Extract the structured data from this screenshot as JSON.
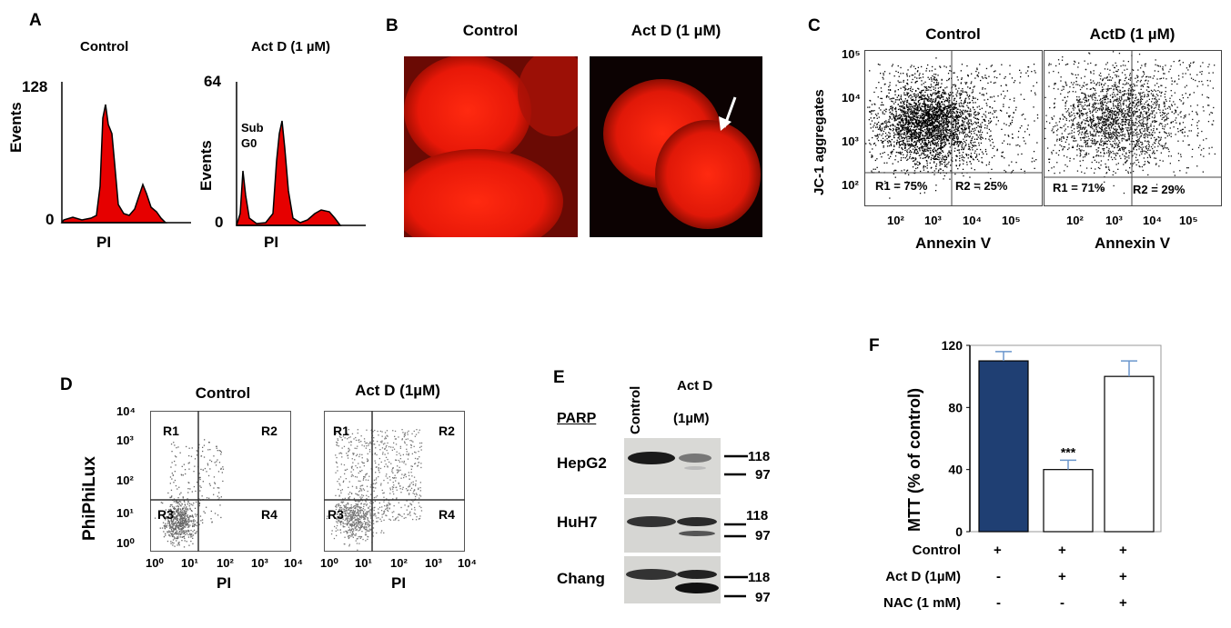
{
  "panel_a": {
    "label": "A",
    "control": {
      "title": "Control",
      "ymax": "128",
      "ymin": "0",
      "ylabel": "Events",
      "xlabel": "PI"
    },
    "actd": {
      "title": "Act D (1 µM)",
      "ymax": "64",
      "ymin": "0",
      "ylabel": "Events",
      "xlabel": "PI",
      "subg0": [
        "Sub",
        "G0"
      ]
    }
  },
  "panel_b": {
    "label": "B",
    "control_title": "Control",
    "actd_title": "Act D (1 µM)"
  },
  "panel_c": {
    "label": "C",
    "ylabel": "JC-1 aggregates",
    "xlabel": "Annexin V",
    "yticks": [
      "10⁵",
      "10⁴",
      "10³",
      "10²"
    ],
    "xticks": [
      "10²",
      "10³",
      "10⁴",
      "10⁵"
    ],
    "control": {
      "title": "Control",
      "r1": "R1 = 75%",
      "r2": "R2 = 25%"
    },
    "actd": {
      "title": "ActD (1 µM)",
      "r1": "R1 = 71%",
      "r2": "R2 = 29%"
    }
  },
  "panel_d": {
    "label": "D",
    "ylabel": "PhiPhiLux",
    "xlabel": "PI",
    "yticks": [
      "10⁴",
      "10³",
      "10²",
      "10¹",
      "10⁰"
    ],
    "xticks": [
      "10⁰",
      "10¹",
      "10²",
      "10³",
      "10⁴"
    ],
    "quadrants": [
      "R1",
      "R2",
      "R3",
      "R4"
    ],
    "control_title": "Control",
    "actd_title": "Act D (1µM)"
  },
  "panel_e": {
    "label": "E",
    "header": "PARP",
    "col_control": "Control",
    "col_actd": [
      "Act D",
      "(1µM)"
    ],
    "rows": [
      {
        "name": "HepG2",
        "m1": "118",
        "m2": "97"
      },
      {
        "name": "HuH7",
        "m1": "118",
        "m2": "97"
      },
      {
        "name": "Chang",
        "m1": "118",
        "m2": "97"
      }
    ]
  },
  "panel_f": {
    "label": "F",
    "significance": "***",
    "conditions": [
      {
        "name": "Control",
        "values": [
          "+",
          "+",
          "+"
        ]
      },
      {
        "name": "Act D (1µM)",
        "values": [
          "-",
          "+",
          "+"
        ]
      },
      {
        "name": "NAC (1 mM)",
        "values": [
          "-",
          "-",
          "+"
        ]
      }
    ]
  },
  "chart_data": {
    "type": "bar",
    "ylabel": "MTT (% of control)",
    "ylim": [
      0,
      120
    ],
    "yticks": [
      0,
      40,
      80,
      120
    ],
    "categories": [
      "Control",
      "Act D (1µM)",
      "Act D (1µM) + NAC (1 mM)"
    ],
    "values": [
      110,
      40,
      100
    ],
    "errors": [
      6,
      6,
      10
    ],
    "colors": [
      "#1f3f73",
      "#ffffff",
      "#ffffff"
    ],
    "error_color": "#6a96cc"
  }
}
